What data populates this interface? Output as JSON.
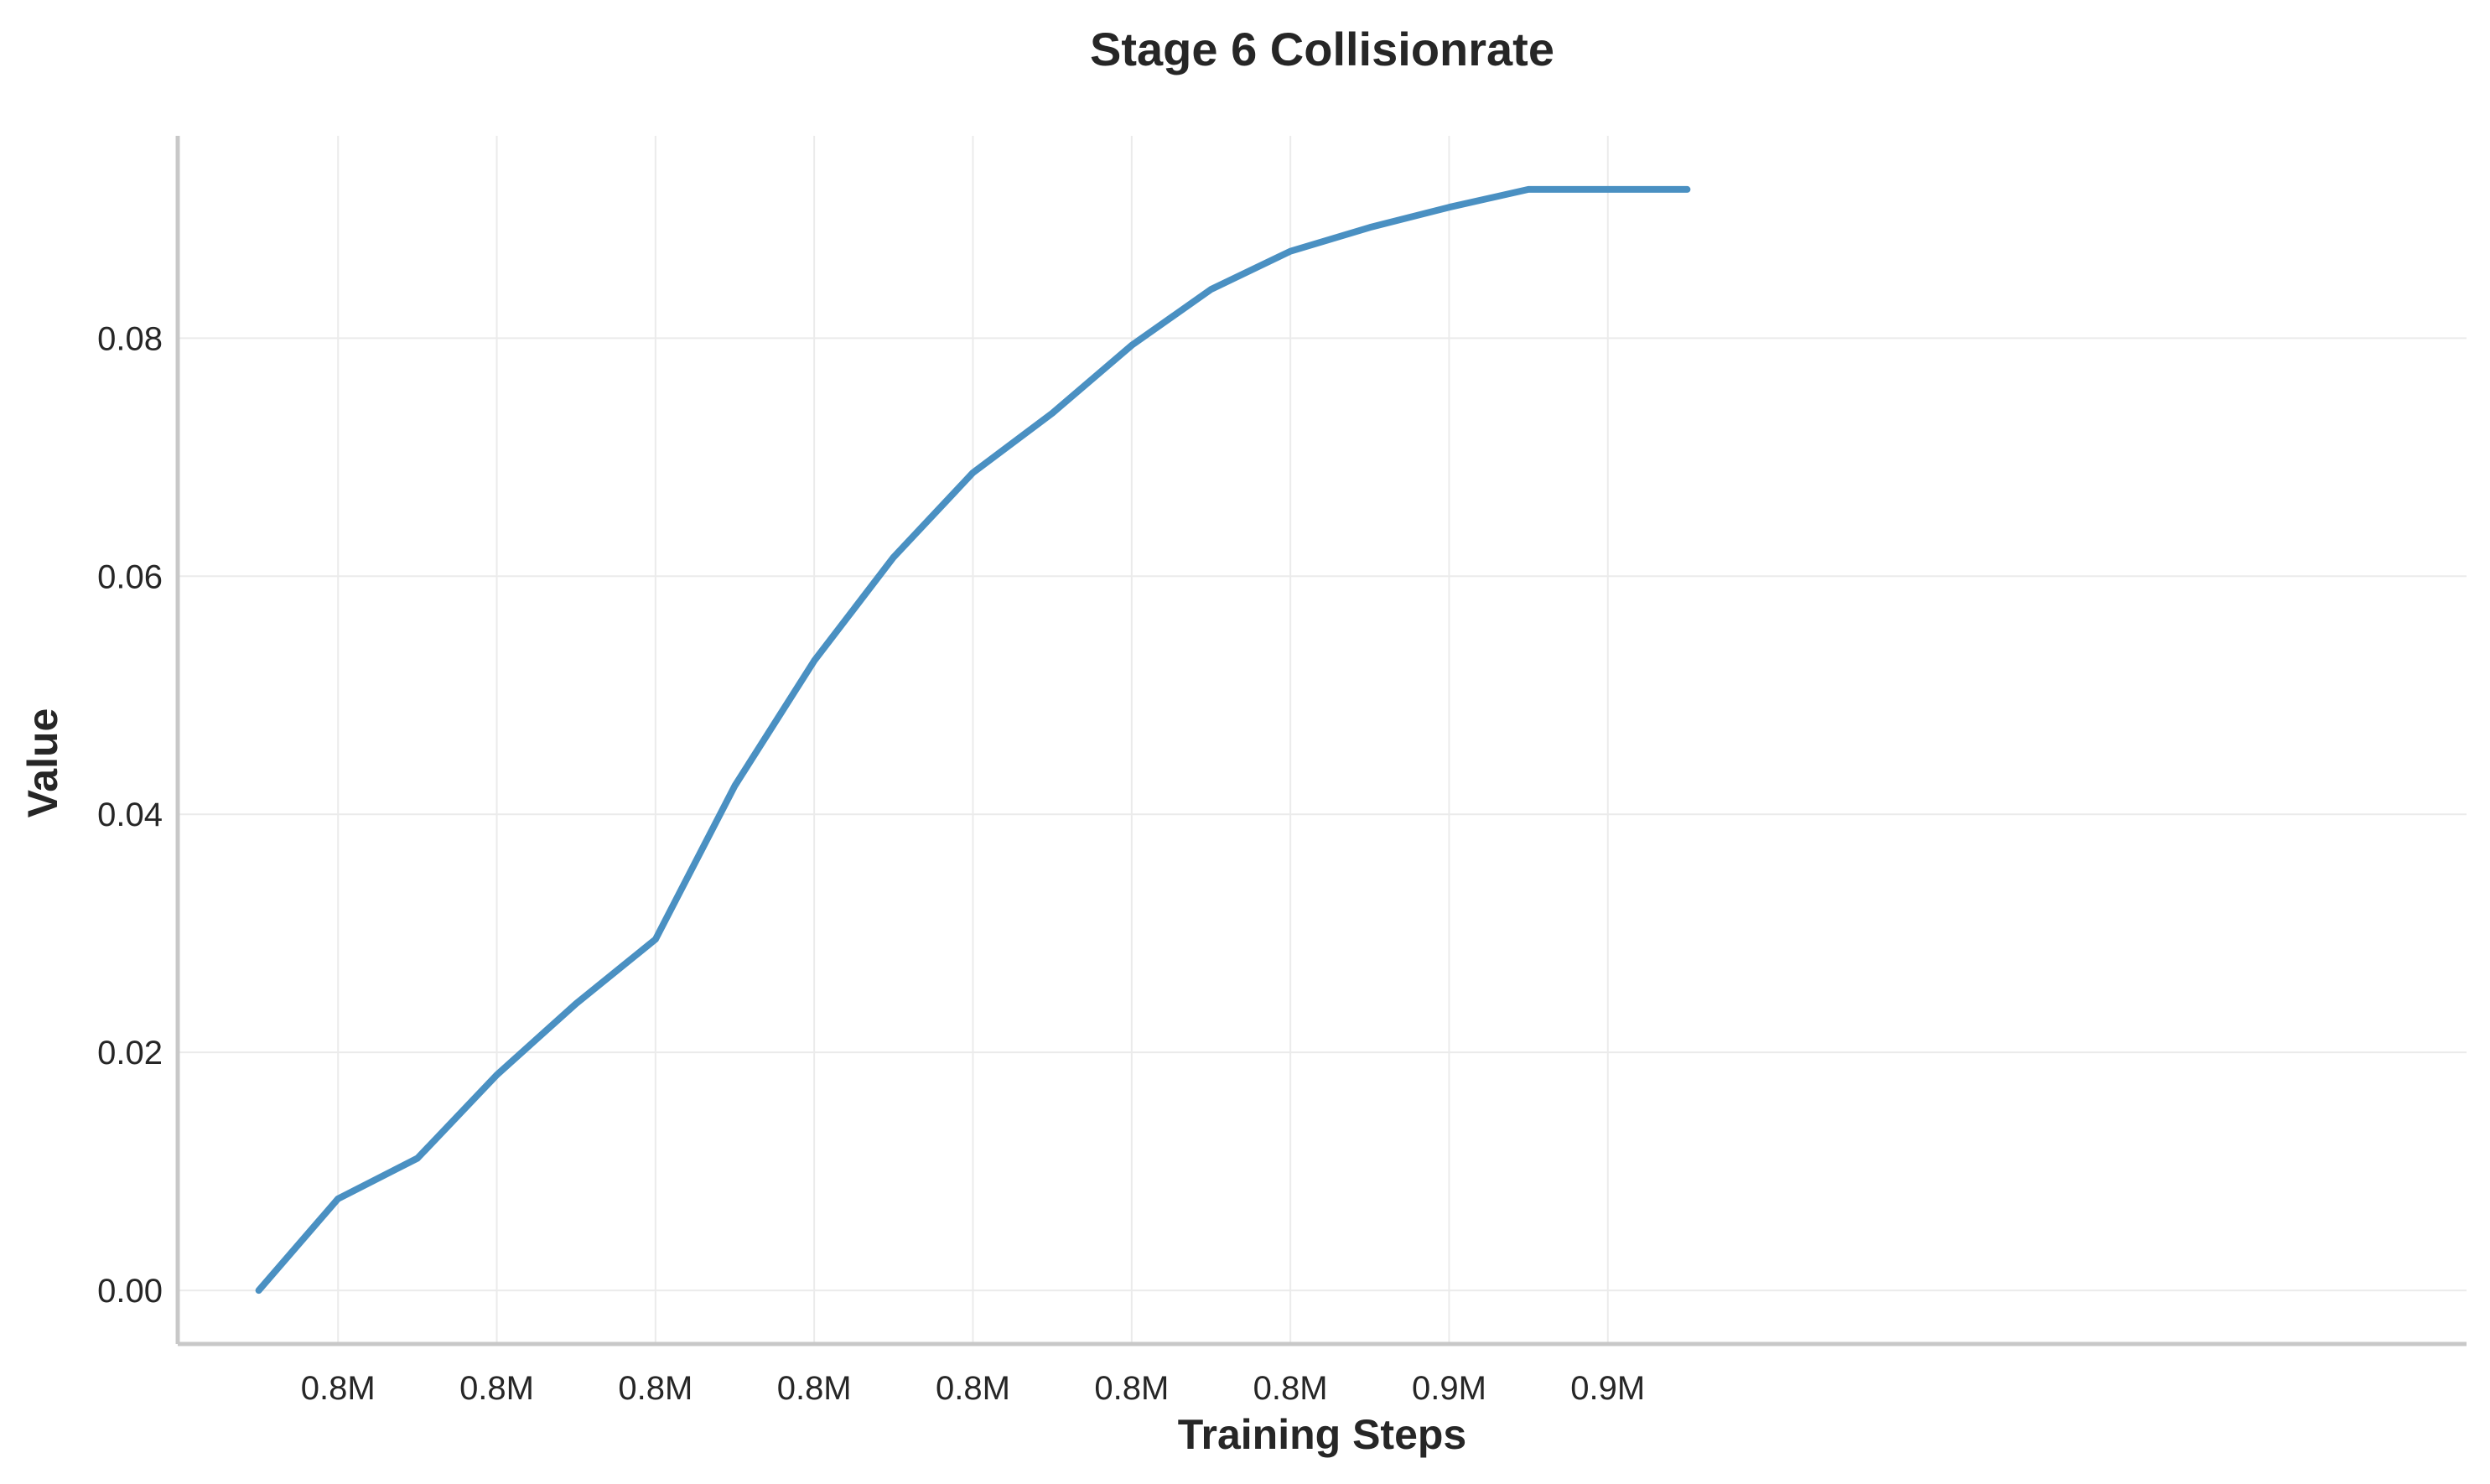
{
  "chart_data": {
    "type": "line",
    "title": "Stage 6 Collisionrate",
    "xlabel": "Training Steps",
    "ylabel": "Value",
    "xlim": [
      0.7799,
      0.9241
    ],
    "ylim": [
      -0.0045,
      0.097
    ],
    "x_ticks": [
      {
        "value": 0.79,
        "label": "0.8M"
      },
      {
        "value": 0.8,
        "label": "0.8M"
      },
      {
        "value": 0.81,
        "label": "0.8M"
      },
      {
        "value": 0.82,
        "label": "0.8M"
      },
      {
        "value": 0.83,
        "label": "0.8M"
      },
      {
        "value": 0.84,
        "label": "0.8M"
      },
      {
        "value": 0.85,
        "label": "0.8M"
      },
      {
        "value": 0.86,
        "label": "0.9M"
      },
      {
        "value": 0.87,
        "label": "0.9M"
      }
    ],
    "y_ticks": [
      {
        "value": 0.0,
        "label": "0.00"
      },
      {
        "value": 0.02,
        "label": "0.02"
      },
      {
        "value": 0.04,
        "label": "0.04"
      },
      {
        "value": 0.06,
        "label": "0.06"
      },
      {
        "value": 0.08,
        "label": "0.08"
      }
    ],
    "grid": true,
    "series": [
      {
        "color": "#4a90c2",
        "x": [
          0.785,
          0.79,
          0.795,
          0.8,
          0.805,
          0.81,
          0.815,
          0.82,
          0.825,
          0.83,
          0.835,
          0.84,
          0.845,
          0.85,
          0.855,
          0.86,
          0.865,
          0.87,
          0.875
        ],
        "y": [
          0.0,
          0.0077,
          0.0111,
          0.0181,
          0.0241,
          0.0295,
          0.0424,
          0.0529,
          0.0616,
          0.0687,
          0.0737,
          0.0794,
          0.0841,
          0.0873,
          0.0893,
          0.091,
          0.0925,
          0.0925,
          0.0925
        ]
      }
    ]
  }
}
